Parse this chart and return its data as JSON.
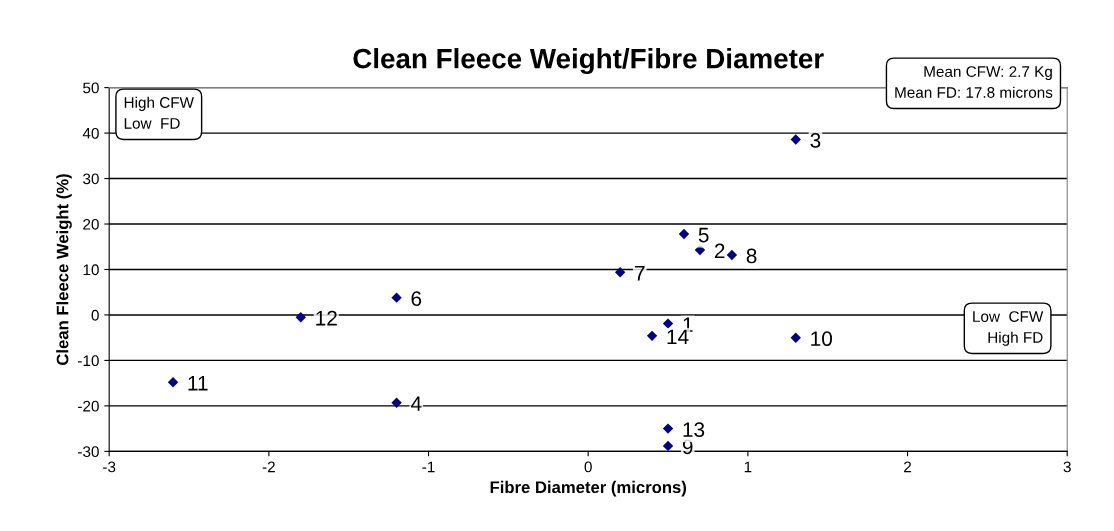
{
  "chart_data": {
    "type": "scatter",
    "title": "Clean Fleece Weight/Fibre Diameter",
    "xlabel": "Fibre Diameter (microns)",
    "ylabel": "Clean Fleece Weight (%)",
    "x": [
      0.5,
      0.7,
      1.3,
      -1.2,
      0.6,
      -1.2,
      0.2,
      0.9,
      0.5,
      1.3,
      -2.6,
      -1.8,
      0.5,
      0.4
    ],
    "values": [
      -1.9,
      14.3,
      38.6,
      -19.3,
      17.8,
      3.8,
      9.4,
      13.2,
      -28.8,
      -5.0,
      -14.8,
      -0.5,
      -25.0,
      -4.6
    ],
    "color": "#000080",
    "marker": "diamond",
    "xlim": [
      -3,
      3
    ],
    "xticks": [
      -3,
      -2,
      -1,
      0,
      1,
      2,
      3
    ],
    "ylim": [
      -30,
      50
    ],
    "yticks": [
      -30,
      -20,
      -10,
      0,
      10,
      20,
      30,
      40,
      50
    ],
    "grid": "y",
    "annotations": [
      "High CFW\nLow  FD",
      "Mean CFW: 2.7 Kg\nMean FD: 17.8 microns",
      "Low  CFW\nHigh FD",
      {
        "text": "1",
        "x": 0.5,
        "y": -1.9
      },
      {
        "text": "2",
        "x": 0.7,
        "y": 14.3
      },
      {
        "text": "3",
        "x": 1.3,
        "y": 38.6
      },
      {
        "text": "4",
        "x": -1.2,
        "y": -19.3
      },
      {
        "text": "5",
        "x": 0.6,
        "y": 17.8
      },
      {
        "text": "6",
        "x": -1.2,
        "y": 3.8
      },
      {
        "text": "7",
        "x": 0.2,
        "y": 9.4
      },
      {
        "text": "8",
        "x": 0.9,
        "y": 13.2
      },
      {
        "text": "9",
        "x": 0.5,
        "y": -28.8
      },
      {
        "text": "10",
        "x": 1.3,
        "y": -5.0
      },
      {
        "text": "11",
        "x": -2.6,
        "y": -14.8
      },
      {
        "text": "12",
        "x": -1.8,
        "y": -0.5
      },
      {
        "text": "13",
        "x": 0.5,
        "y": -25.0
      },
      {
        "text": "14",
        "x": 0.4,
        "y": -4.6
      }
    ]
  }
}
